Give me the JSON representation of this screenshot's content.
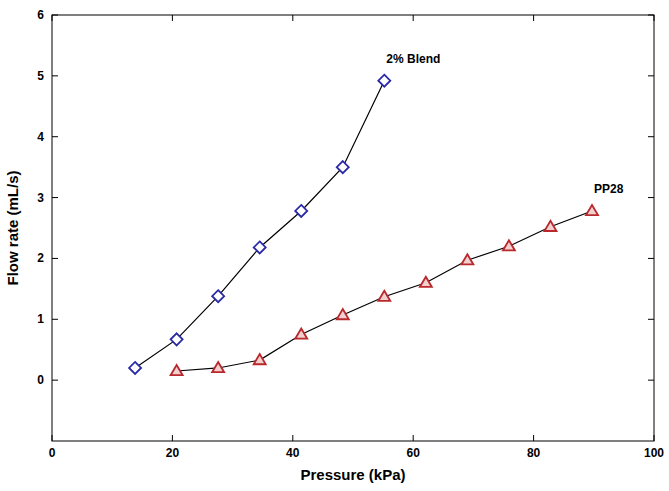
{
  "chart_data": {
    "type": "line",
    "x_label": "Pressure (kPa)",
    "y_label": "Flow rate (mL/s)",
    "xlim": [
      0,
      100
    ],
    "xticks": [
      0,
      20,
      40,
      60,
      80,
      100
    ],
    "ylim": [
      -1,
      6
    ],
    "yticks": [
      0,
      1,
      2,
      3,
      4,
      5,
      6
    ],
    "grid": false,
    "series": [
      {
        "name": "2% Blend",
        "color": "#2a2aa8",
        "marker": "diamond",
        "line_style": "solid",
        "x": [
          13.8,
          20.7,
          27.6,
          34.5,
          41.4,
          48.3,
          55.2
        ],
        "values": [
          0.2,
          0.67,
          1.38,
          2.18,
          2.78,
          3.5,
          4.92
        ]
      },
      {
        "name": "PP28",
        "color": "#b8282d",
        "marker": "triangle",
        "line_style": "solid",
        "x": [
          20.7,
          27.6,
          34.5,
          41.4,
          48.3,
          55.2,
          62.1,
          69.0,
          75.9,
          82.8,
          89.7
        ],
        "values": [
          0.15,
          0.2,
          0.33,
          0.75,
          1.07,
          1.37,
          1.6,
          1.97,
          2.2,
          2.52,
          2.78
        ]
      }
    ]
  }
}
